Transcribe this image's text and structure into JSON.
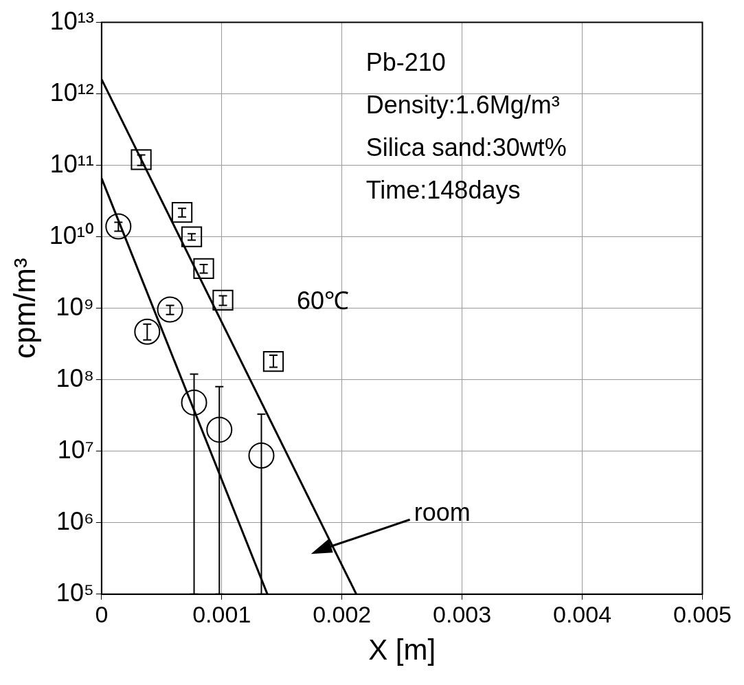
{
  "chart_data": {
    "type": "scatter",
    "xlabel": "X [m]",
    "ylabel": "cpm/m³",
    "log": "y",
    "grid": true,
    "legend": false,
    "xlim": [
      0,
      0.005
    ],
    "xticks": [
      0,
      0.001,
      0.002,
      0.003,
      0.004,
      0.005
    ],
    "ylim": [
      100000,
      10000000000000
    ],
    "yticks": [
      {
        "value": 100000,
        "label": "10⁵"
      },
      {
        "value": 1000000,
        "label": "10⁶"
      },
      {
        "value": 10000000,
        "label": "10⁷"
      },
      {
        "value": 100000000,
        "label": "10⁸"
      },
      {
        "value": 1000000000,
        "label": "10⁹"
      },
      {
        "value": 10000000000,
        "label": "10¹⁰"
      },
      {
        "value": 100000000000,
        "label": "10¹¹"
      },
      {
        "value": 1000000000000,
        "label": "10¹²"
      },
      {
        "value": 10000000000000,
        "label": "10¹³"
      }
    ],
    "series": [
      {
        "marker": "square",
        "color": "#000000",
        "x": [
          0.00033,
          0.00067,
          0.00075,
          0.00085,
          0.00101,
          0.00143
        ],
        "values": [
          120000000000,
          22000000000,
          10000000000,
          3600000000,
          1300000000,
          180000000
        ],
        "errors": [
          [
            100000000000,
            140000000000
          ],
          [
            19000000000,
            25000000000
          ],
          [
            9000000000,
            11000000000
          ],
          [
            3100000000,
            4100000000
          ],
          [
            1100000000,
            1500000000
          ],
          [
            150000000,
            220000000
          ]
        ]
      },
      {
        "marker": "circle",
        "color": "#000000",
        "x": [
          0.00014,
          0.00038,
          0.00057,
          0.00077,
          0.00098,
          0.00133
        ],
        "values": [
          14000000000,
          470000000,
          960000000,
          48000000,
          20000000,
          8700000
        ],
        "errors": [
          [
            12000000000,
            16000000000
          ],
          [
            360000000,
            600000000
          ],
          [
            820000000,
            1100000000
          ],
          [
            100000,
            120000000
          ],
          [
            100000,
            80000000
          ],
          [
            100000,
            33000000
          ]
        ]
      },
      {
        "type": "line",
        "marker": "none",
        "line_style": "solid",
        "color": "#000000",
        "x": [
          0,
          0.00212
        ],
        "values": [
          1600000000000,
          100000
        ]
      },
      {
        "type": "line",
        "marker": "none",
        "line_style": "solid",
        "color": "#000000",
        "x": [
          0,
          0.00138
        ],
        "values": [
          66000000000,
          100000
        ]
      }
    ],
    "annotations": [
      "Pb-210",
      "Density:1.6Mg/m³",
      "Silica sand:30wt%",
      "Time:148days",
      "60℃",
      "room"
    ]
  }
}
